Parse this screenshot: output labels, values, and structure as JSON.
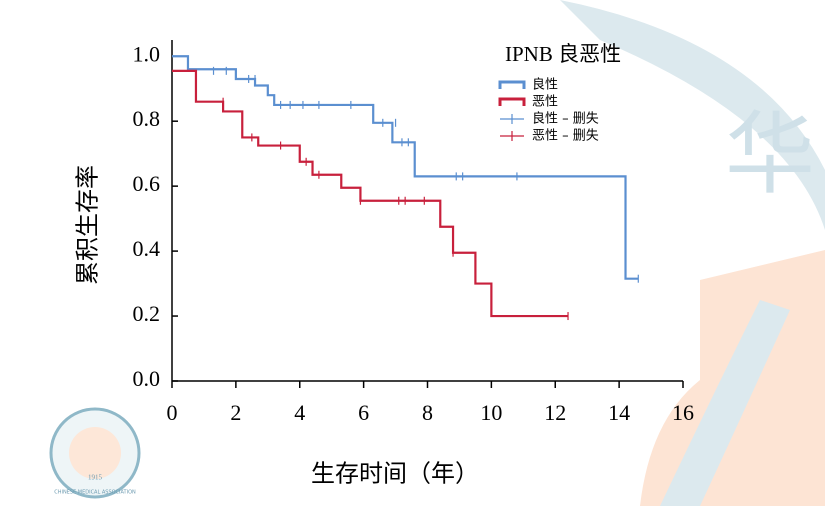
{
  "chart_data": {
    "type": "step",
    "legend_title": "IPNB 良恶性",
    "xlabel": "生存时间（年）",
    "ylabel": "累积生存率",
    "xlim": [
      0,
      16
    ],
    "xticks": [
      0,
      2,
      4,
      6,
      8,
      10,
      12,
      14,
      16
    ],
    "ylim": [
      0,
      1.05
    ],
    "yticks": [
      {
        "value": 0,
        "label": "0.0"
      },
      0.2,
      0.4,
      0.6,
      0.8,
      {
        "value": 1,
        "label": "1.0"
      }
    ],
    "legend": "upper right",
    "series": [
      {
        "name": "良性",
        "kind": "line",
        "color": "#5b8fd0",
        "x": [
          0,
          0.5,
          2.0,
          2.6,
          3.0,
          3.2,
          6.3,
          6.9,
          7.6,
          14.2,
          14.6
        ],
        "values": [
          1.0,
          0.96,
          0.93,
          0.91,
          0.88,
          0.85,
          0.795,
          0.735,
          0.63,
          0.315,
          0.315
        ]
      },
      {
        "name": "恶性",
        "kind": "line",
        "color": "#c8203c",
        "x": [
          0,
          0.75,
          1.6,
          2.2,
          2.7,
          4.0,
          4.4,
          5.3,
          5.9,
          8.4,
          8.8,
          9.5,
          10.0,
          12.4
        ],
        "values": [
          0.955,
          0.86,
          0.83,
          0.75,
          0.725,
          0.675,
          0.635,
          0.595,
          0.555,
          0.475,
          0.395,
          0.3,
          0.2,
          0.2
        ]
      },
      {
        "name": "良性 – 删失",
        "kind": "censor",
        "color": "#5b8fd0",
        "x": [
          1.3,
          1.7,
          2.4,
          2.6,
          3.4,
          3.7,
          4.1,
          4.6,
          5.6,
          6.6,
          7.0,
          7.2,
          7.4,
          8.9,
          9.1,
          10.8,
          14.6
        ],
        "values": [
          0.955,
          0.955,
          0.93,
          0.93,
          0.85,
          0.85,
          0.85,
          0.85,
          0.85,
          0.795,
          0.795,
          0.735,
          0.735,
          0.63,
          0.63,
          0.63,
          0.315
        ]
      },
      {
        "name": "恶性 – 删失",
        "kind": "censor",
        "color": "#c8203c",
        "x": [
          1.6,
          2.5,
          3.4,
          4.2,
          4.6,
          5.9,
          7.1,
          7.3,
          7.9,
          8.8,
          12.4
        ],
        "values": [
          0.86,
          0.75,
          0.725,
          0.675,
          0.635,
          0.555,
          0.555,
          0.555,
          0.555,
          0.395,
          0.2
        ]
      }
    ]
  },
  "watermark": {
    "logo_year": "1915",
    "logo_text": "CHINESE MEDICAL ASSOCIATION",
    "big_char": "华"
  }
}
